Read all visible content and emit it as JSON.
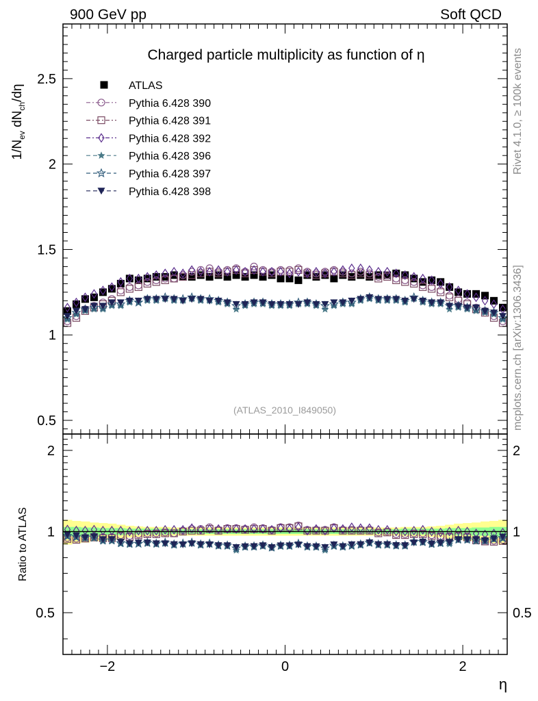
{
  "header": {
    "left": "900 GeV pp",
    "right": "Soft QCD"
  },
  "side_labels": {
    "rivet": "Rivet 4.1.0, ≥ 100k events",
    "mcplots": "mcplots.cern.ch [arXiv:1306.3436]"
  },
  "reference": "(ATLAS_2010_I849050)",
  "chart_data": [
    {
      "type": "scatter",
      "panel": "main",
      "title": "Charged particle multiplicity as function of η",
      "xlabel": "η",
      "ylabel": "1/N_ev dN_ch/dη",
      "xlim": [
        -2.5,
        2.5
      ],
      "ylim": [
        0.42,
        2.82
      ],
      "yticks": [
        0.5,
        1,
        1.5,
        2,
        2.5
      ],
      "ytick_labels": [
        "0.5",
        "1",
        "1.5",
        "2",
        "2.5"
      ],
      "legend_position": "top-left",
      "x": [
        -2.45,
        -2.35,
        -2.25,
        -2.15,
        -2.05,
        -1.95,
        -1.85,
        -1.75,
        -1.65,
        -1.55,
        -1.45,
        -1.35,
        -1.25,
        -1.15,
        -1.05,
        -0.95,
        -0.85,
        -0.75,
        -0.65,
        -0.55,
        -0.45,
        -0.35,
        -0.25,
        -0.15,
        -0.05,
        0.05,
        0.15,
        0.25,
        0.35,
        0.45,
        0.55,
        0.65,
        0.75,
        0.85,
        0.95,
        1.05,
        1.15,
        1.25,
        1.35,
        1.45,
        1.55,
        1.65,
        1.75,
        1.85,
        1.95,
        2.05,
        2.15,
        2.25,
        2.35,
        2.45
      ],
      "series": [
        {
          "name": "ATLAS",
          "color": "#000000",
          "marker": "filled-square",
          "line": "none",
          "values": [
            1.14,
            1.18,
            1.21,
            1.22,
            1.25,
            1.27,
            1.3,
            1.33,
            1.32,
            1.33,
            1.34,
            1.34,
            1.35,
            1.34,
            1.34,
            1.35,
            1.34,
            1.35,
            1.34,
            1.35,
            1.34,
            1.35,
            1.34,
            1.35,
            1.33,
            1.33,
            1.32,
            1.35,
            1.34,
            1.35,
            1.33,
            1.35,
            1.34,
            1.35,
            1.34,
            1.35,
            1.35,
            1.36,
            1.35,
            1.33,
            1.31,
            1.32,
            1.31,
            1.28,
            1.25,
            1.24,
            1.24,
            1.23,
            1.2,
            1.16
          ]
        },
        {
          "name": "Pythia 6.428 390",
          "color": "#8a5a8c",
          "marker": "open-circle",
          "line": "dash-dot",
          "values": [
            1.08,
            1.11,
            1.15,
            1.17,
            1.19,
            1.21,
            1.26,
            1.28,
            1.29,
            1.31,
            1.32,
            1.33,
            1.33,
            1.35,
            1.37,
            1.38,
            1.39,
            1.37,
            1.38,
            1.39,
            1.37,
            1.4,
            1.38,
            1.37,
            1.38,
            1.38,
            1.39,
            1.37,
            1.36,
            1.37,
            1.38,
            1.37,
            1.36,
            1.37,
            1.36,
            1.34,
            1.35,
            1.33,
            1.32,
            1.31,
            1.29,
            1.28,
            1.26,
            1.23,
            1.21,
            1.19,
            1.16,
            1.14,
            1.11,
            1.08
          ]
        },
        {
          "name": "Pythia 6.428 391",
          "color": "#7a4a62",
          "marker": "open-square",
          "line": "dash-dot",
          "values": [
            1.07,
            1.1,
            1.14,
            1.16,
            1.18,
            1.2,
            1.25,
            1.27,
            1.28,
            1.3,
            1.31,
            1.32,
            1.33,
            1.34,
            1.35,
            1.36,
            1.37,
            1.36,
            1.37,
            1.38,
            1.36,
            1.38,
            1.37,
            1.36,
            1.37,
            1.37,
            1.38,
            1.36,
            1.35,
            1.36,
            1.37,
            1.36,
            1.35,
            1.36,
            1.35,
            1.33,
            1.34,
            1.32,
            1.31,
            1.3,
            1.28,
            1.27,
            1.25,
            1.22,
            1.2,
            1.18,
            1.15,
            1.13,
            1.1,
            1.07
          ]
        },
        {
          "name": "Pythia 6.428 392",
          "color": "#5a2d8c",
          "marker": "open-diamond",
          "line": "dash-dot",
          "values": [
            1.16,
            1.19,
            1.22,
            1.24,
            1.26,
            1.28,
            1.31,
            1.33,
            1.33,
            1.34,
            1.35,
            1.36,
            1.37,
            1.36,
            1.38,
            1.37,
            1.37,
            1.38,
            1.37,
            1.38,
            1.37,
            1.38,
            1.37,
            1.37,
            1.37,
            1.36,
            1.37,
            1.36,
            1.37,
            1.36,
            1.37,
            1.38,
            1.39,
            1.39,
            1.38,
            1.37,
            1.37,
            1.36,
            1.35,
            1.34,
            1.33,
            1.32,
            1.3,
            1.28,
            1.26,
            1.24,
            1.22,
            1.2,
            1.18,
            1.15
          ]
        },
        {
          "name": "Pythia 6.428 396",
          "color": "#4a7a88",
          "marker": "filled-star",
          "line": "dash",
          "values": [
            1.09,
            1.12,
            1.14,
            1.15,
            1.15,
            1.17,
            1.17,
            1.19,
            1.19,
            1.2,
            1.2,
            1.21,
            1.2,
            1.2,
            1.21,
            1.2,
            1.2,
            1.19,
            1.18,
            1.15,
            1.17,
            1.18,
            1.18,
            1.17,
            1.17,
            1.17,
            1.18,
            1.18,
            1.17,
            1.15,
            1.17,
            1.18,
            1.18,
            1.2,
            1.21,
            1.2,
            1.2,
            1.2,
            1.19,
            1.21,
            1.19,
            1.18,
            1.18,
            1.15,
            1.16,
            1.15,
            1.14,
            1.13,
            1.12,
            1.09
          ]
        },
        {
          "name": "Pythia 6.428 397",
          "color": "#2e5a7a",
          "marker": "open-star",
          "line": "dash",
          "values": [
            1.1,
            1.13,
            1.15,
            1.16,
            1.16,
            1.18,
            1.18,
            1.2,
            1.19,
            1.21,
            1.21,
            1.22,
            1.21,
            1.21,
            1.22,
            1.21,
            1.21,
            1.2,
            1.19,
            1.17,
            1.18,
            1.19,
            1.19,
            1.18,
            1.18,
            1.18,
            1.19,
            1.19,
            1.18,
            1.17,
            1.18,
            1.19,
            1.19,
            1.21,
            1.22,
            1.21,
            1.21,
            1.21,
            1.2,
            1.22,
            1.2,
            1.19,
            1.19,
            1.17,
            1.17,
            1.16,
            1.15,
            1.14,
            1.13,
            1.1
          ]
        },
        {
          "name": "Pythia 6.428 398",
          "color": "#1e2456",
          "marker": "filled-triangle-down",
          "line": "dash",
          "values": [
            1.11,
            1.14,
            1.15,
            1.17,
            1.17,
            1.19,
            1.19,
            1.2,
            1.2,
            1.21,
            1.21,
            1.21,
            1.21,
            1.2,
            1.21,
            1.21,
            1.2,
            1.2,
            1.19,
            1.18,
            1.18,
            1.19,
            1.19,
            1.18,
            1.18,
            1.18,
            1.18,
            1.19,
            1.18,
            1.18,
            1.19,
            1.19,
            1.2,
            1.21,
            1.22,
            1.21,
            1.21,
            1.21,
            1.2,
            1.21,
            1.2,
            1.19,
            1.19,
            1.17,
            1.17,
            1.16,
            1.16,
            1.14,
            1.13,
            1.11
          ]
        }
      ]
    },
    {
      "type": "scatter",
      "panel": "ratio",
      "ylabel": "Ratio to ATLAS",
      "xlabel": "η",
      "xlim": [
        -2.5,
        2.5
      ],
      "ylim": [
        0.35,
        2.3
      ],
      "yticks": [
        0.5,
        1,
        2
      ],
      "ytick_labels": [
        "0.5",
        "1",
        "2"
      ],
      "xticks": [
        -2,
        0,
        2
      ],
      "xtick_labels": [
        "−2",
        "0",
        "2"
      ],
      "reference_line": 1,
      "bands": [
        {
          "name": "ATLAS stat+syst (outer)",
          "color": "#ffff90",
          "halfwidth": [
            0.105,
            0.095,
            0.09,
            0.08,
            0.075,
            0.07,
            0.06,
            0.05,
            0.045,
            0.04,
            0.04,
            0.04,
            0.035,
            0.035,
            0.035,
            0.035,
            0.035,
            0.035,
            0.035,
            0.035,
            0.035,
            0.035,
            0.035,
            0.035,
            0.035,
            0.035,
            0.035,
            0.035,
            0.035,
            0.035,
            0.035,
            0.035,
            0.035,
            0.035,
            0.035,
            0.035,
            0.035,
            0.035,
            0.04,
            0.04,
            0.04,
            0.045,
            0.05,
            0.06,
            0.07,
            0.075,
            0.08,
            0.09,
            0.095,
            0.105
          ]
        },
        {
          "name": "ATLAS stat (inner)",
          "color": "#90ff90",
          "halfwidth": [
            0.04,
            0.04,
            0.035,
            0.035,
            0.03,
            0.03,
            0.03,
            0.025,
            0.025,
            0.025,
            0.025,
            0.025,
            0.02,
            0.02,
            0.02,
            0.02,
            0.02,
            0.02,
            0.02,
            0.02,
            0.02,
            0.02,
            0.02,
            0.02,
            0.02,
            0.02,
            0.02,
            0.02,
            0.02,
            0.02,
            0.02,
            0.02,
            0.02,
            0.02,
            0.02,
            0.02,
            0.02,
            0.02,
            0.025,
            0.025,
            0.025,
            0.025,
            0.025,
            0.03,
            0.03,
            0.03,
            0.035,
            0.035,
            0.04,
            0.04
          ]
        }
      ]
    }
  ]
}
